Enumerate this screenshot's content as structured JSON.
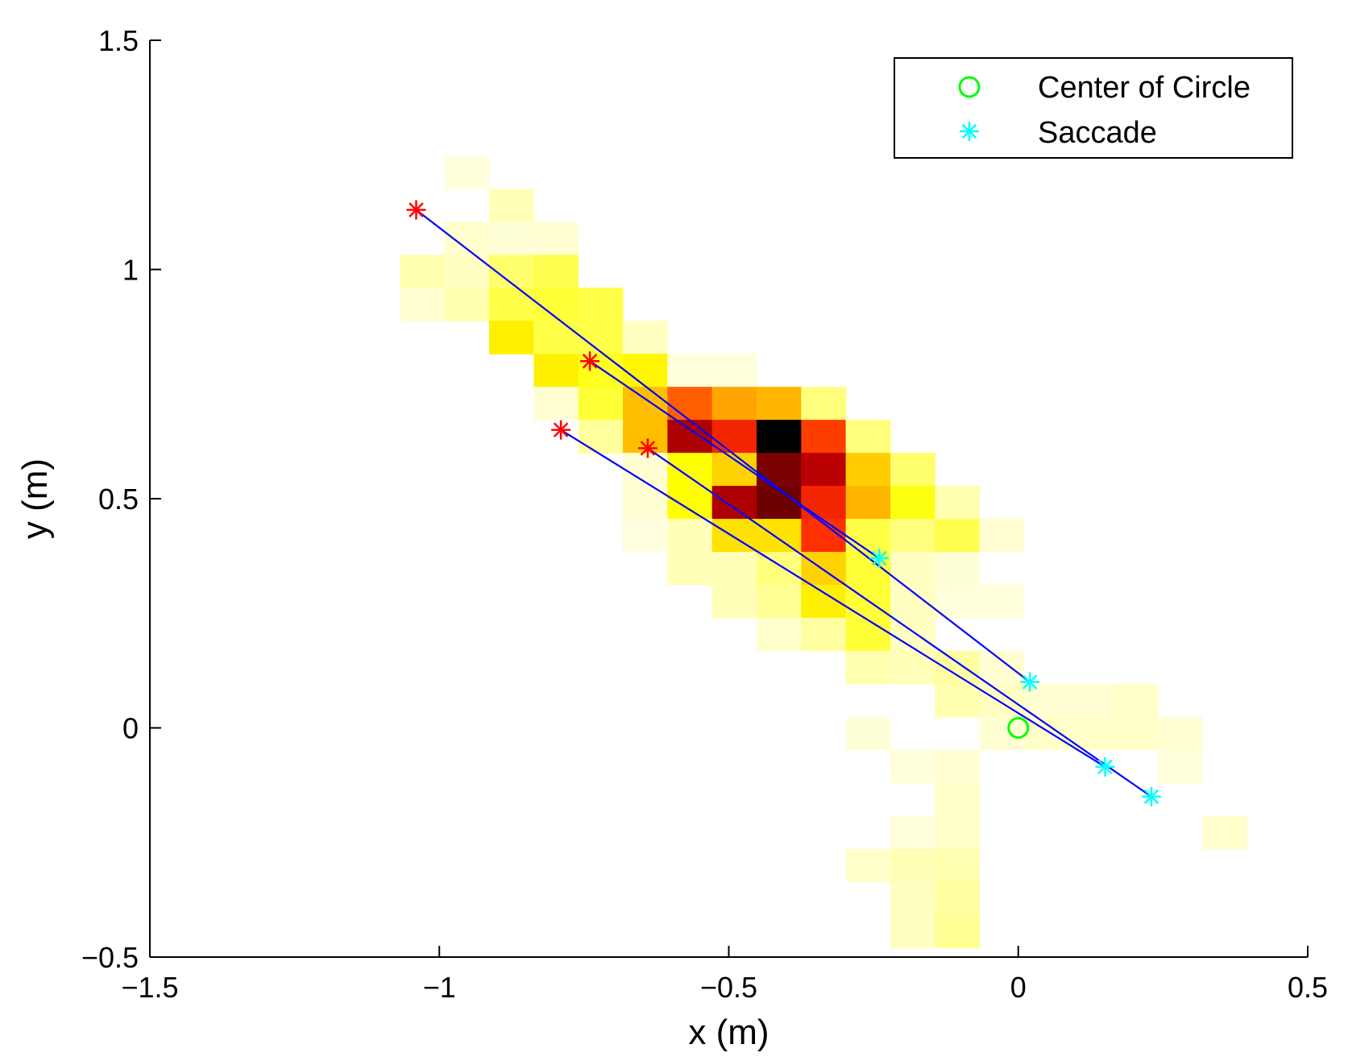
{
  "chart_data": {
    "type": "heatmap",
    "title": "",
    "xlabel": "x (m)",
    "ylabel": "y (m)",
    "xlim": [
      -1.5,
      0.5
    ],
    "ylim": [
      -0.5,
      1.5
    ],
    "xticks": [
      -1.5,
      -1,
      -0.5,
      0,
      0.5
    ],
    "xtick_labels": [
      "−1.5",
      "−1",
      "−0.5",
      "0",
      "0.5"
    ],
    "yticks": [
      -0.5,
      0,
      0.5,
      1,
      1.5
    ],
    "ytick_labels": [
      "−0.5",
      "0",
      "0.5",
      "1",
      "1.5"
    ],
    "grid": false,
    "heatmap": {
      "colormap": "hot (reversed)",
      "cell_size": [
        0.077,
        0.072
      ],
      "x_origin": -1.222,
      "y_origin": -0.408,
      "cells": [
        [
          3,
          22,
          0.04
        ],
        [
          4,
          21,
          0.12
        ],
        [
          4,
          20,
          0.05
        ],
        [
          3,
          20,
          0.07
        ],
        [
          5,
          20,
          0.06
        ],
        [
          2,
          19,
          0.14
        ],
        [
          3,
          19,
          0.1
        ],
        [
          4,
          19,
          0.35
        ],
        [
          5,
          19,
          0.4
        ],
        [
          2,
          18,
          0.06
        ],
        [
          3,
          18,
          0.14
        ],
        [
          4,
          18,
          0.42
        ],
        [
          5,
          18,
          0.45
        ],
        [
          6,
          18,
          0.42
        ],
        [
          4,
          17,
          0.6
        ],
        [
          5,
          17,
          0.42
        ],
        [
          6,
          17,
          0.42
        ],
        [
          7,
          17,
          0.1
        ],
        [
          5,
          16,
          0.6
        ],
        [
          6,
          16,
          0.5
        ],
        [
          7,
          16,
          0.58
        ],
        [
          8,
          16,
          0.04
        ],
        [
          9,
          16,
          0.04
        ],
        [
          5,
          15,
          0.06
        ],
        [
          6,
          15,
          0.45
        ],
        [
          7,
          15,
          0.76
        ],
        [
          8,
          15,
          0.95
        ],
        [
          9,
          15,
          0.82
        ],
        [
          10,
          15,
          0.78
        ],
        [
          11,
          15,
          0.3
        ],
        [
          6,
          14,
          0.2
        ],
        [
          7,
          14,
          0.76
        ],
        [
          8,
          14,
          1.2
        ],
        [
          9,
          14,
          1.05
        ],
        [
          10,
          14,
          1.55
        ],
        [
          11,
          14,
          1.0
        ],
        [
          12,
          14,
          0.3
        ],
        [
          7,
          13,
          0.06
        ],
        [
          8,
          13,
          0.55
        ],
        [
          9,
          13,
          0.7
        ],
        [
          10,
          13,
          1.28
        ],
        [
          11,
          13,
          1.18
        ],
        [
          12,
          13,
          0.72
        ],
        [
          13,
          13,
          0.35
        ],
        [
          7,
          12,
          0.06
        ],
        [
          8,
          12,
          0.55
        ],
        [
          9,
          12,
          1.2
        ],
        [
          10,
          12,
          1.3
        ],
        [
          11,
          12,
          1.05
        ],
        [
          12,
          12,
          0.78
        ],
        [
          13,
          12,
          0.52
        ],
        [
          14,
          12,
          0.14
        ],
        [
          7,
          11,
          0.03
        ],
        [
          8,
          11,
          0.12
        ],
        [
          9,
          11,
          0.65
        ],
        [
          10,
          11,
          0.65
        ],
        [
          11,
          11,
          1.02
        ],
        [
          12,
          11,
          0.42
        ],
        [
          13,
          11,
          0.3
        ],
        [
          14,
          11,
          0.4
        ],
        [
          15,
          11,
          0.06
        ],
        [
          8,
          10,
          0.12
        ],
        [
          9,
          10,
          0.12
        ],
        [
          10,
          10,
          0.3
        ],
        [
          11,
          10,
          0.7
        ],
        [
          12,
          10,
          0.45
        ],
        [
          13,
          10,
          0.1
        ],
        [
          14,
          10,
          0.05
        ],
        [
          9,
          9,
          0.12
        ],
        [
          10,
          9,
          0.22
        ],
        [
          11,
          9,
          0.6
        ],
        [
          12,
          9,
          0.45
        ],
        [
          13,
          9,
          0.1
        ],
        [
          14,
          9,
          0.04
        ],
        [
          15,
          9,
          0.04
        ],
        [
          10,
          8,
          0.07
        ],
        [
          11,
          8,
          0.18
        ],
        [
          12,
          8,
          0.45
        ],
        [
          13,
          8,
          0.1
        ],
        [
          12,
          7,
          0.14
        ],
        [
          13,
          7,
          0.12
        ],
        [
          14,
          7,
          0.18
        ],
        [
          15,
          7,
          0.06
        ],
        [
          14,
          6,
          0.14
        ],
        [
          15,
          6,
          0.1
        ],
        [
          16,
          6,
          0.06
        ],
        [
          17,
          6,
          0.06
        ],
        [
          18,
          6,
          0.08
        ],
        [
          12,
          5,
          0.05
        ],
        [
          15,
          5,
          0.06
        ],
        [
          16,
          5,
          0.08
        ],
        [
          17,
          5,
          0.08
        ],
        [
          18,
          5,
          0.08
        ],
        [
          19,
          5,
          0.06
        ],
        [
          13,
          4,
          0.04
        ],
        [
          14,
          4,
          0.06
        ],
        [
          19,
          4,
          0.04
        ],
        [
          14,
          3,
          0.08
        ],
        [
          13,
          2,
          0.04
        ],
        [
          14,
          2,
          0.08
        ],
        [
          20,
          2,
          0.07
        ],
        [
          12,
          1,
          0.08
        ],
        [
          13,
          1,
          0.12
        ],
        [
          14,
          1,
          0.14
        ],
        [
          13,
          0,
          0.1
        ],
        [
          14,
          0,
          0.18
        ],
        [
          13,
          -1,
          0.1
        ],
        [
          14,
          -1,
          0.22
        ]
      ]
    },
    "series": [
      {
        "name": "Saccade",
        "type": "line-segments",
        "color": "#0000ff",
        "segments": [
          {
            "start": [
              -1.04,
              1.13
            ],
            "end": [
              0.02,
              0.1
            ]
          },
          {
            "start": [
              -0.74,
              0.8
            ],
            "end": [
              -0.24,
              0.37
            ]
          },
          {
            "start": [
              -0.79,
              0.65
            ],
            "end": [
              0.15,
              -0.085
            ]
          },
          {
            "start": [
              -0.64,
              0.61
            ],
            "end": [
              0.23,
              -0.15
            ]
          }
        ]
      }
    ],
    "start_markers": {
      "color": "#ff0000",
      "marker": "*",
      "points": [
        [
          -1.04,
          1.13
        ],
        [
          -0.74,
          0.8
        ],
        [
          -0.79,
          0.65
        ],
        [
          -0.64,
          0.61
        ]
      ]
    },
    "saccade_markers": {
      "color": "#00ffff",
      "marker": "*",
      "points": [
        [
          0.02,
          0.1
        ],
        [
          -0.24,
          0.37
        ],
        [
          0.15,
          -0.085
        ],
        [
          0.23,
          -0.15
        ]
      ]
    },
    "center_marker": {
      "color": "#00ff00",
      "marker": "o",
      "point": [
        0.0,
        0.0
      ]
    },
    "legend": {
      "placement": "top-right",
      "entries": [
        {
          "label": "Center of Circle",
          "marker": "o",
          "color": "#00ff00"
        },
        {
          "label": "Saccade",
          "marker": "*",
          "color": "#00ffff"
        }
      ]
    }
  }
}
